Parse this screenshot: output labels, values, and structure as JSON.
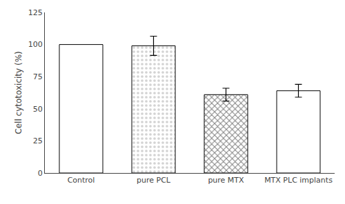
{
  "chart_data": {
    "type": "bar",
    "categories": [
      "Control",
      "pure PCL",
      "pure MTX",
      "MTX PLC implants"
    ],
    "values": [
      100,
      99,
      61,
      64
    ],
    "errors": [
      0,
      7.5,
      5.0,
      5.0
    ],
    "colors": [
      "white",
      "lightgray",
      "gray",
      "white"
    ],
    "ylabel": "Cell cytotoxicity (%)",
    "ylim": [
      0,
      125
    ],
    "yticks": [
      0,
      25,
      50,
      75,
      100,
      125
    ],
    "grid": false
  }
}
